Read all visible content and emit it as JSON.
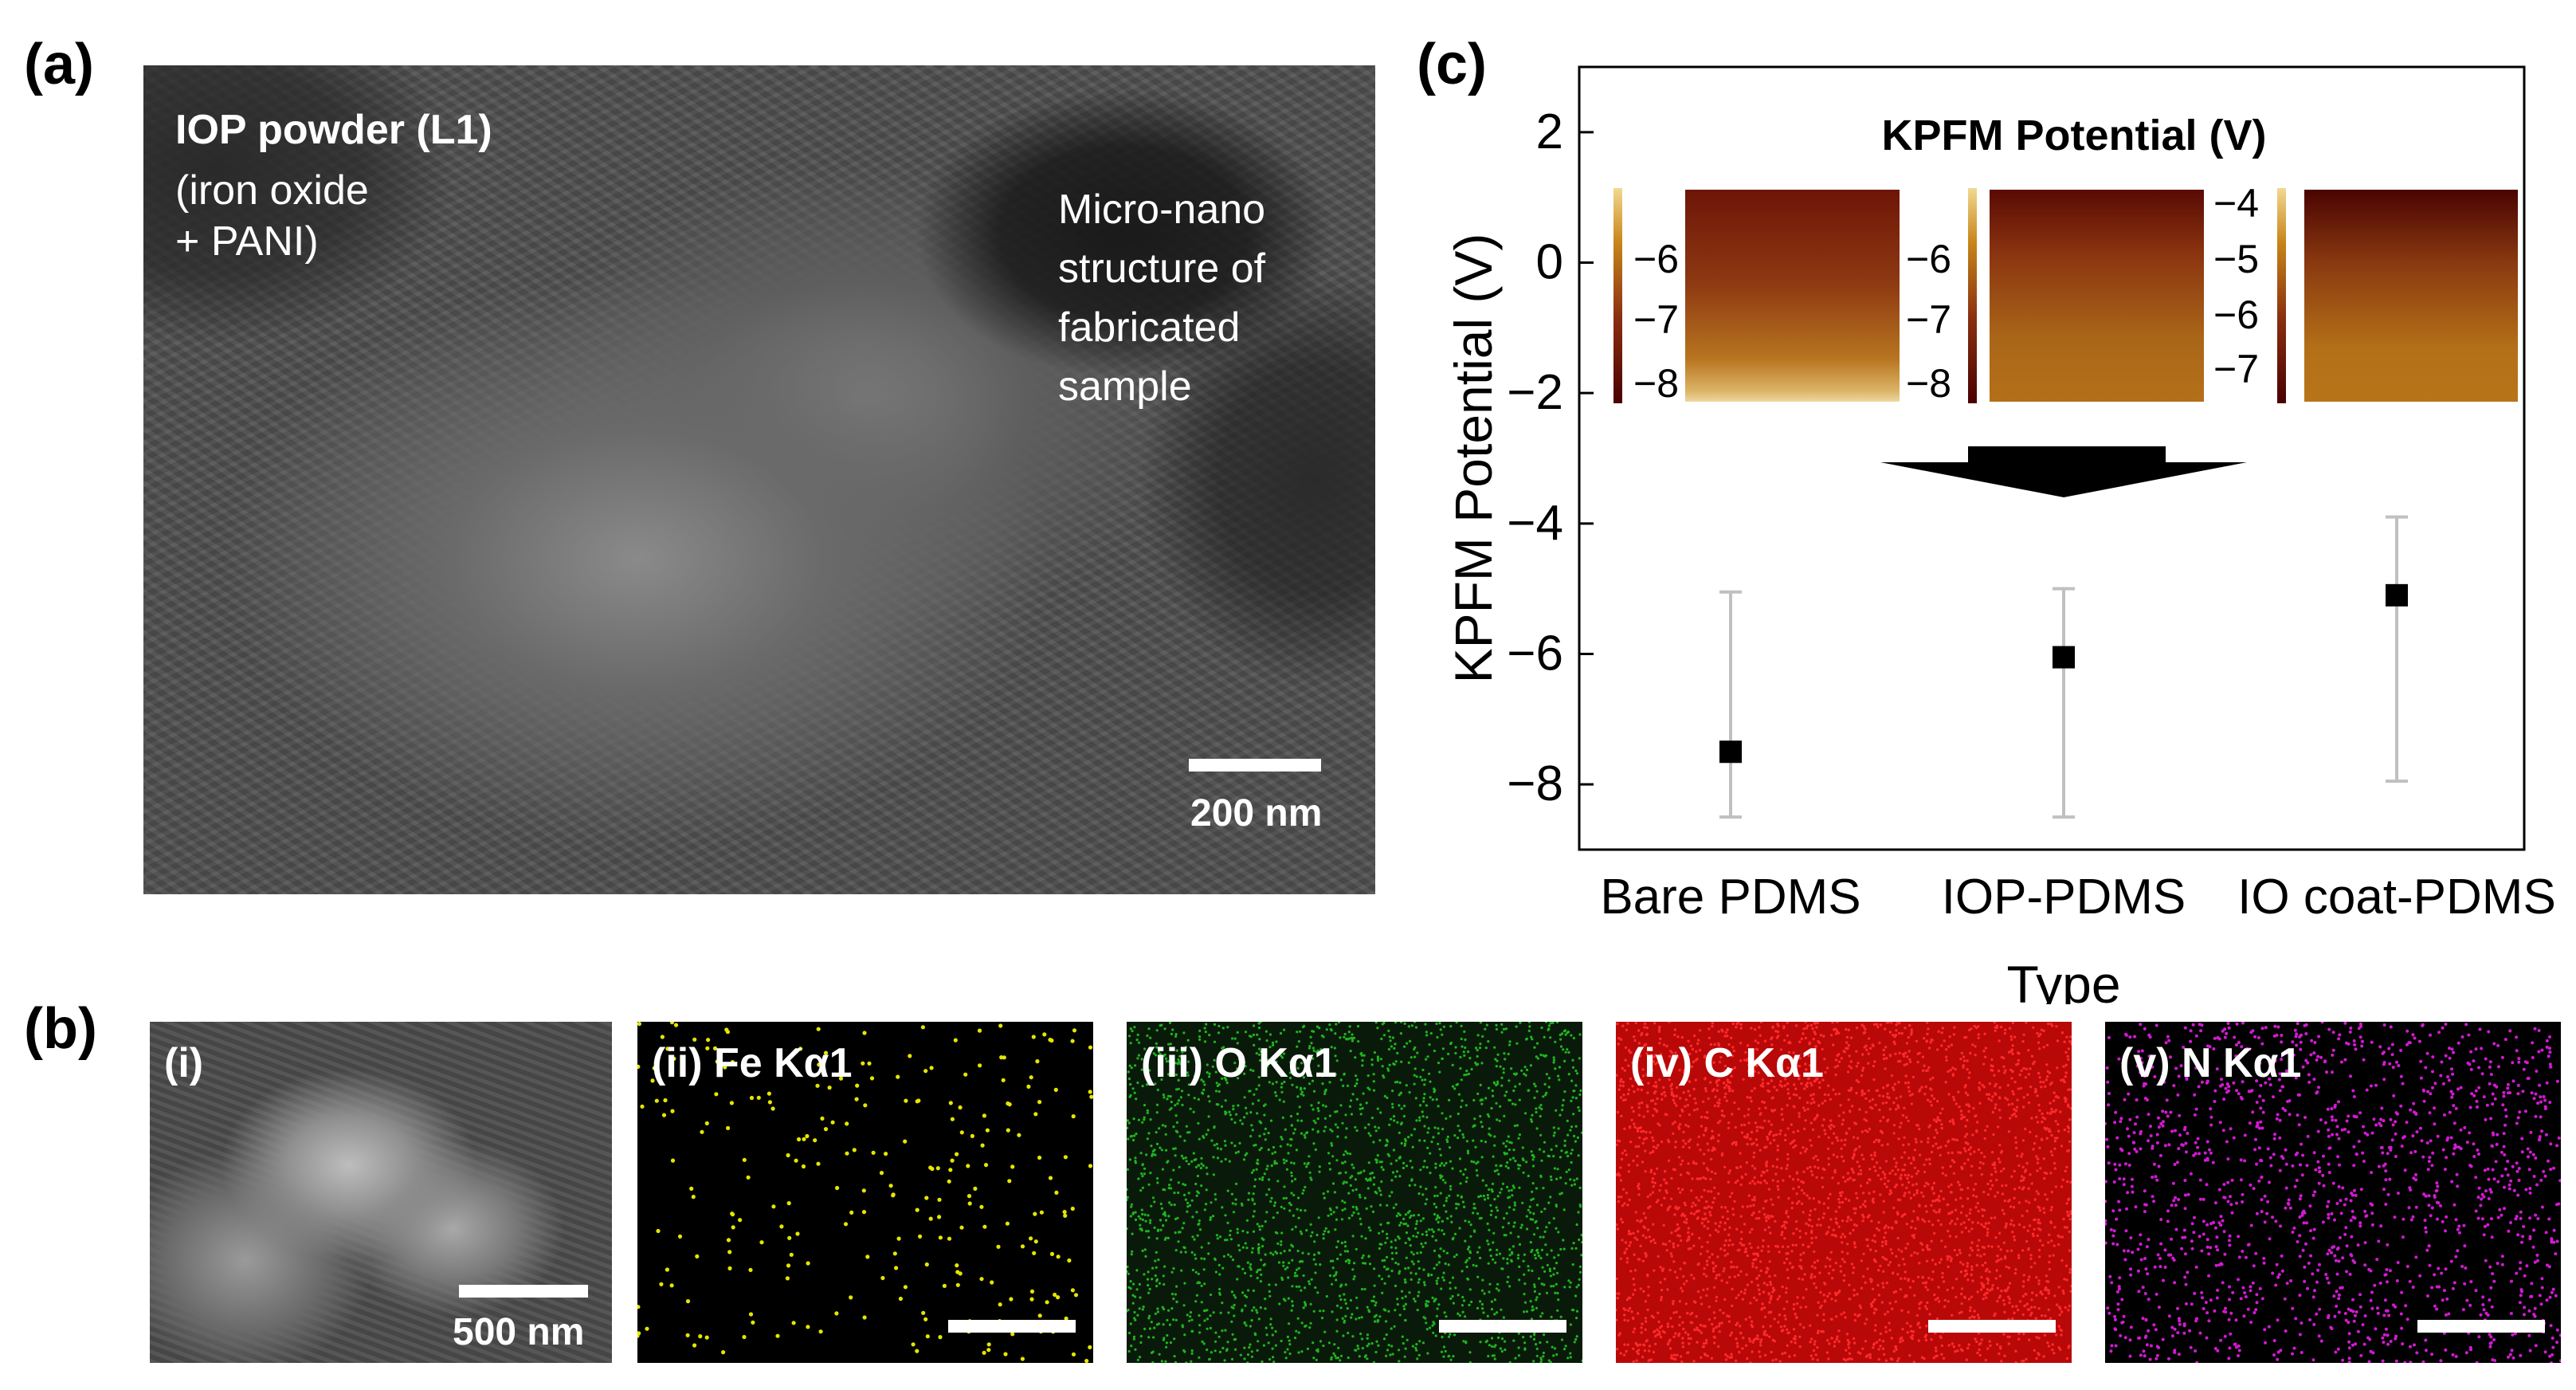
{
  "panel_a": {
    "letter": "(a)",
    "title": "IOP powder (L1)",
    "subtitle_line1": "(iron oxide",
    "subtitle_line2": "+ PANI)",
    "note_line1": "Micro-nano",
    "note_line2": "structure of",
    "note_line3": "fabricated",
    "note_line4": "sample",
    "scale_label": "200 nm"
  },
  "panel_b": {
    "letter": "(b)",
    "tiles": [
      {
        "label": "(i)",
        "scale_label": "500 nm",
        "color": "#777777"
      },
      {
        "label": "(ii) Fe Kα1",
        "color": "#e6e600"
      },
      {
        "label": "(iii) O Kα1",
        "color": "#1fb41f"
      },
      {
        "label": "(iv) C Kα1",
        "color": "#e01010"
      },
      {
        "label": "(v) N Kα1",
        "color": "#d21ad2"
      }
    ]
  },
  "panel_c": {
    "letter": "(c)",
    "inset_title": "KPFM Potential (V)",
    "insets": [
      {
        "ticks": [
          "−6",
          "−7",
          "−8"
        ]
      },
      {
        "ticks": [
          "−6",
          "−7",
          "−8"
        ]
      },
      {
        "ticks": [
          "−4",
          "−5",
          "−6",
          "−7"
        ]
      }
    ]
  },
  "chart_data": {
    "type": "scatter",
    "xlabel": "Type",
    "ylabel": "KPFM Potential (V)",
    "categories": [
      "Bare PDMS",
      "IOP-PDMS",
      "IO coat-PDMS"
    ],
    "values": [
      -7.5,
      -6.05,
      -5.1
    ],
    "error_low": [
      -8.5,
      -8.5,
      -7.95
    ],
    "error_high": [
      -5.05,
      -5.0,
      -3.9
    ],
    "ylim": [
      -9,
      3
    ],
    "yticks": [
      2,
      0,
      -2,
      -4,
      -6,
      -8
    ],
    "ytick_labels": [
      "2",
      "0",
      "−2",
      "−4",
      "−6",
      "−8"
    ],
    "marker_color": "#000000",
    "errorbar_color": "#c0c0c0",
    "grid": false
  }
}
